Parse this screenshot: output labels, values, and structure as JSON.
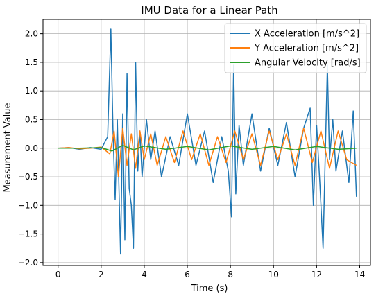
{
  "chart_data": {
    "type": "line",
    "title": "IMU Data for a Linear Path",
    "xlabel": "Time (s)",
    "ylabel": "Measurement Value",
    "xlim": [
      -0.7,
      14.5
    ],
    "ylim": [
      -2.05,
      2.25
    ],
    "xticks": [
      0,
      2,
      4,
      6,
      8,
      10,
      12,
      14
    ],
    "yticks": [
      -2.0,
      -1.5,
      -1.0,
      -0.5,
      0.0,
      0.5,
      1.0,
      1.5,
      2.0
    ],
    "xtick_labels": [
      "0",
      "2",
      "4",
      "6",
      "8",
      "10",
      "12",
      "14"
    ],
    "ytick_labels": [
      "−2.0",
      "−1.5",
      "−1.0",
      "−0.5",
      "0.0",
      "0.5",
      "1.0",
      "1.5",
      "2.0"
    ],
    "grid": true,
    "legend_position": "top-right",
    "series": [
      {
        "name": "X Acceleration [m/s^2]",
        "color": "#1f77b4",
        "x": [
          0.0,
          0.5,
          1.0,
          1.5,
          2.0,
          2.3,
          2.45,
          2.55,
          2.65,
          2.75,
          2.9,
          3.0,
          3.1,
          3.2,
          3.3,
          3.4,
          3.5,
          3.6,
          3.7,
          3.8,
          3.9,
          4.1,
          4.3,
          4.5,
          4.8,
          5.2,
          5.6,
          6.0,
          6.4,
          6.8,
          7.2,
          7.6,
          7.9,
          8.05,
          8.15,
          8.25,
          8.4,
          8.6,
          9.0,
          9.4,
          9.8,
          10.2,
          10.6,
          11.0,
          11.4,
          11.7,
          11.85,
          12.0,
          12.15,
          12.3,
          12.5,
          12.6,
          12.75,
          12.9,
          13.2,
          13.5,
          13.7,
          13.85
        ],
        "y": [
          0.0,
          0.01,
          -0.02,
          0.01,
          -0.02,
          0.2,
          2.08,
          0.3,
          -0.9,
          0.5,
          -1.85,
          0.6,
          -1.6,
          1.3,
          -0.7,
          -1.0,
          -1.75,
          1.5,
          -0.4,
          0.3,
          -0.5,
          0.5,
          -0.2,
          0.3,
          -0.5,
          0.2,
          -0.3,
          0.6,
          -0.3,
          0.3,
          -0.6,
          0.2,
          -0.4,
          -1.2,
          1.45,
          -0.8,
          0.4,
          -0.3,
          0.6,
          -0.4,
          0.35,
          -0.3,
          0.45,
          -0.5,
          0.35,
          0.7,
          -1.0,
          0.4,
          -0.6,
          -1.75,
          1.45,
          -0.2,
          0.5,
          -0.4,
          0.3,
          -0.6,
          0.65,
          -0.85
        ]
      },
      {
        "name": "Y Acceleration [m/s^2]",
        "color": "#ff7f0e",
        "x": [
          0.0,
          0.5,
          1.0,
          1.5,
          2.0,
          2.4,
          2.6,
          2.8,
          3.0,
          3.2,
          3.4,
          3.6,
          3.8,
          4.0,
          4.3,
          4.6,
          5.0,
          5.4,
          5.8,
          6.2,
          6.6,
          7.0,
          7.4,
          7.8,
          8.2,
          8.6,
          9.0,
          9.4,
          9.8,
          10.2,
          10.6,
          11.0,
          11.4,
          11.8,
          12.2,
          12.6,
          13.0,
          13.4,
          13.85
        ],
        "y": [
          0.0,
          0.01,
          -0.01,
          0.0,
          0.02,
          -0.1,
          0.3,
          -0.5,
          0.35,
          -0.3,
          0.25,
          -0.35,
          0.3,
          -0.2,
          0.25,
          -0.3,
          0.2,
          -0.25,
          0.3,
          -0.2,
          0.25,
          -0.3,
          0.2,
          -0.25,
          0.3,
          -0.2,
          0.25,
          -0.3,
          0.3,
          -0.2,
          0.25,
          -0.3,
          0.35,
          -0.25,
          0.3,
          -0.35,
          0.3,
          -0.2,
          -0.3
        ]
      },
      {
        "name": "Angular Velocity [rad/s]",
        "color": "#2ca02c",
        "x": [
          0.0,
          1.0,
          2.0,
          2.5,
          3.0,
          3.5,
          4.0,
          5.0,
          6.0,
          7.0,
          8.0,
          9.0,
          10.0,
          11.0,
          12.0,
          13.0,
          13.85
        ],
        "y": [
          0.0,
          0.0,
          0.01,
          -0.05,
          0.05,
          -0.03,
          0.04,
          -0.02,
          0.03,
          -0.03,
          0.04,
          -0.02,
          0.03,
          -0.03,
          0.03,
          -0.02,
          0.0
        ]
      }
    ]
  }
}
